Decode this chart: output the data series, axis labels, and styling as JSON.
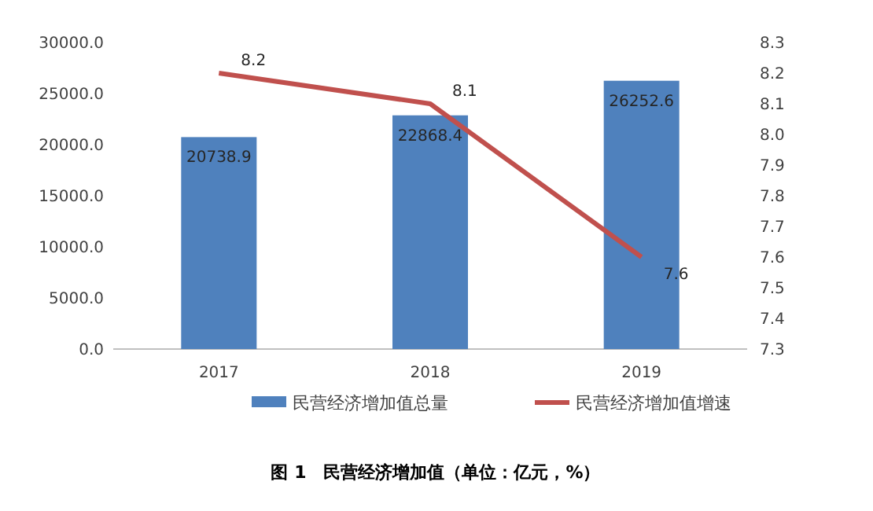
{
  "chart_data": {
    "type": "bar",
    "title": "图 1　民营经济增加值（单位：亿元，%）",
    "categories": [
      "2017",
      "2018",
      "2019"
    ],
    "series": [
      {
        "name": "民营经济增加值总量",
        "color": "#4f81bd",
        "values": [
          20738.9,
          22868.4,
          26252.6
        ]
      },
      {
        "name": "民营经济增加值增速",
        "type": "line",
        "axis": "y2",
        "color": "#c0504d",
        "values": [
          8.2,
          8.1,
          7.6
        ]
      }
    ],
    "ylim": [
      0,
      30000
    ],
    "yticks": [
      {
        "value": 0,
        "label": "0.0"
      },
      {
        "value": 5000,
        "label": "5000.0"
      },
      {
        "value": 10000,
        "label": "10000.0"
      },
      {
        "value": 15000,
        "label": "15000.0"
      },
      {
        "value": 20000,
        "label": "20000.0"
      },
      {
        "value": 25000,
        "label": "25000.0"
      },
      {
        "value": 30000,
        "label": "30000.0"
      }
    ],
    "y2lim": [
      7.3,
      8.3
    ],
    "y2ticks": [
      7.3,
      7.4,
      7.5,
      7.6,
      7.7,
      7.8,
      7.9,
      {
        "value": 8,
        "label": "8.0"
      },
      8.1,
      8.2,
      8.3
    ],
    "data_labels": true,
    "legend": "bottom"
  }
}
